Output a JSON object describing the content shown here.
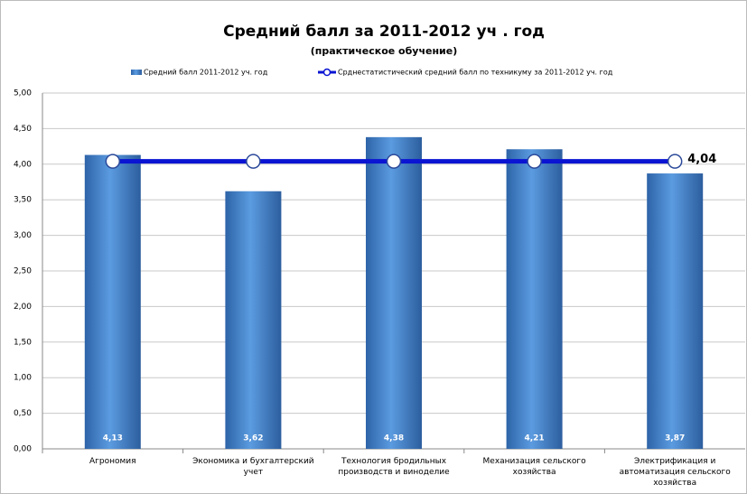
{
  "chart_data": {
    "type": "bar",
    "title": "Средний балл за 2011-2012 уч . год",
    "subtitle": "(практическое обучение)",
    "categories": [
      "Агрономия",
      "Экономика и бухгалтерский учет",
      "Технология бродильных производств и виноделие",
      "Механизация сельского хозяйства",
      "Электрификация и автоматизация сельского хозяйства"
    ],
    "series": [
      {
        "name": "Средний балл 2011-2012 уч. год",
        "type": "bar",
        "color": "#3c7cc4",
        "values": [
          4.13,
          3.62,
          4.38,
          4.21,
          3.87
        ],
        "value_labels": [
          "4,13",
          "3,62",
          "4,38",
          "4,21",
          "3,87"
        ]
      },
      {
        "name": "Срднестатистический средний балл по техникуму за 2011-2012 уч. год",
        "type": "line",
        "color": "#0a14d2",
        "values": [
          4.04,
          4.04,
          4.04,
          4.04,
          4.04
        ],
        "value_labels": [
          null,
          null,
          null,
          null,
          "4,04"
        ]
      }
    ],
    "ylim": [
      0,
      5
    ],
    "yticks": [
      {
        "value": 0,
        "label": "0,00"
      },
      {
        "value": 0.5,
        "label": "0,50"
      },
      {
        "value": 1,
        "label": "1,00"
      },
      {
        "value": 1.5,
        "label": "1,50"
      },
      {
        "value": 2,
        "label": "2,00"
      },
      {
        "value": 2.5,
        "label": "2,50"
      },
      {
        "value": 3,
        "label": "3,00"
      },
      {
        "value": 3.5,
        "label": "3,50"
      },
      {
        "value": 4,
        "label": "4,00"
      },
      {
        "value": 4.5,
        "label": "4,50"
      },
      {
        "value": 5,
        "label": "5,00"
      }
    ],
    "grid": true,
    "legend": "top"
  }
}
